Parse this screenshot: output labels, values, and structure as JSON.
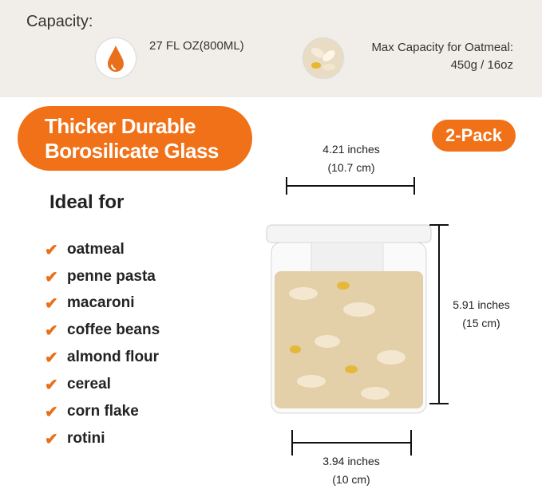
{
  "capacity": {
    "label": "Capacity:",
    "volume": "27 FL OZ(800ML)",
    "oatmeal_line1": "Max Capacity for Oatmeal:",
    "oatmeal_line2": "450g / 16oz"
  },
  "badge": {
    "line1": "Thicker Durable",
    "line2": "Borosilicate Glass",
    "pack": "2-Pack"
  },
  "ideal": {
    "title": "Ideal for",
    "items": [
      "oatmeal",
      "penne pasta",
      "macaroni",
      "coffee beans",
      "almond flour",
      "cereal",
      "corn flake",
      "rotini"
    ]
  },
  "dimensions": {
    "top": {
      "in": "4.21 inches",
      "cm": "(10.7 cm)"
    },
    "height": {
      "in": "5.91 inches",
      "cm": "(15 cm)"
    },
    "bottom": {
      "in": "3.94 inches",
      "cm": "(10 cm)"
    }
  },
  "colors": {
    "accent": "#f07117",
    "band": "#f1eee9"
  }
}
